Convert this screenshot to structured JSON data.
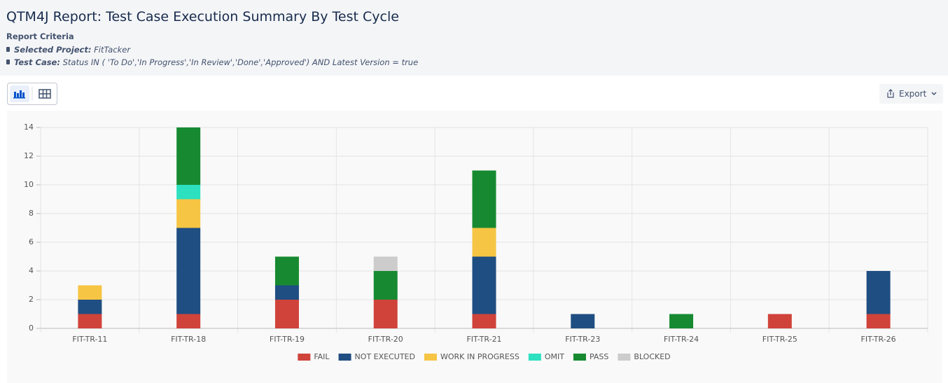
{
  "header": {
    "title": "QTM4J Report: Test Case Execution Summary By Test Cycle",
    "criteria_label": "Report Criteria",
    "criteria": [
      {
        "label": "Selected Project:",
        "value": "FitTacker"
      },
      {
        "label": "Test Case:",
        "value": "Status IN ( 'To Do','In Progress','In Review','Done','Approved') AND Latest Version = true"
      }
    ]
  },
  "toolbar": {
    "export": "Export"
  },
  "chart_data": {
    "type": "stacked_bar",
    "categories": [
      "FIT-TR-11",
      "FIT-TR-18",
      "FIT-TR-19",
      "FIT-TR-20",
      "FIT-TR-21",
      "FIT-TR-23",
      "FIT-TR-24",
      "FIT-TR-25",
      "FIT-TR-26"
    ],
    "series": [
      {
        "name": "FAIL",
        "color": "#d0433a",
        "values": [
          1,
          1,
          2,
          2,
          1,
          0,
          0,
          1,
          1
        ]
      },
      {
        "name": "NOT EXECUTED",
        "color": "#1f4e82",
        "values": [
          1,
          6,
          1,
          0,
          4,
          1,
          0,
          0,
          3
        ]
      },
      {
        "name": "WORK IN PROGRESS",
        "color": "#f6c544",
        "values": [
          1,
          2,
          0,
          0,
          2,
          0,
          0,
          0,
          0
        ]
      },
      {
        "name": "OMIT",
        "color": "#2ce0c0",
        "values": [
          0,
          1,
          0,
          0,
          0,
          0,
          0,
          0,
          0
        ]
      },
      {
        "name": "PASS",
        "color": "#178a31",
        "values": [
          0,
          4,
          2,
          2,
          4,
          0,
          1,
          0,
          0
        ]
      },
      {
        "name": "BLOCKED",
        "color": "#cccccc",
        "values": [
          0,
          0,
          0,
          1,
          0,
          0,
          0,
          0,
          0
        ]
      }
    ],
    "ylim": [
      0,
      14
    ],
    "yticks": [
      0,
      2,
      4,
      6,
      8,
      10,
      12,
      14
    ],
    "grid": true,
    "legend": "bottom"
  }
}
